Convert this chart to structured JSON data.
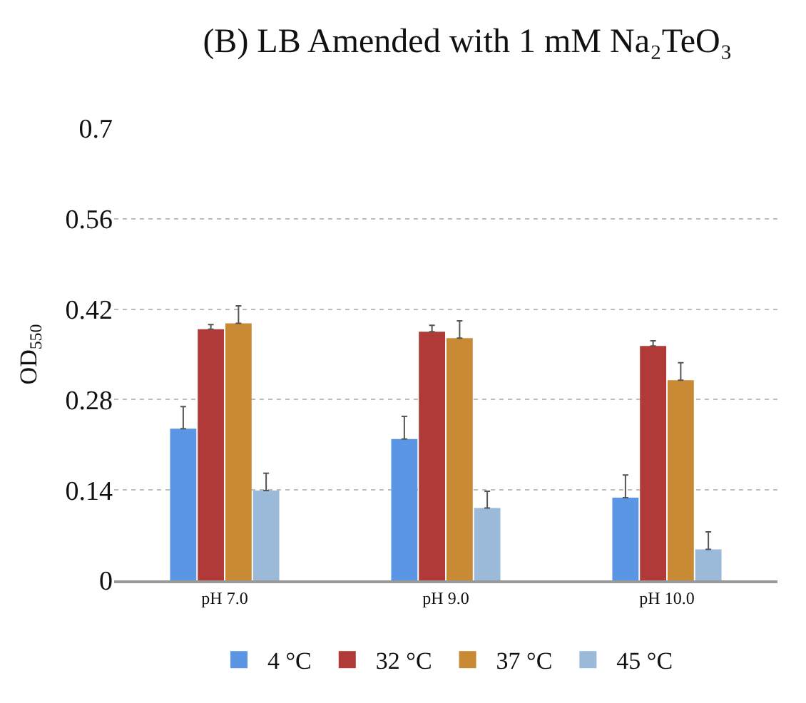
{
  "chart_data": {
    "type": "bar",
    "title": "(B) LB Amended with 1 mM Na₂TeO₃",
    "ylabel": "OD$_{550}$",
    "categories": [
      "pH 7.0",
      "pH 9.0",
      "pH 10.0"
    ],
    "series": [
      {
        "name": "4 °C",
        "color": "#5a96e3",
        "values": [
          0.235,
          0.219,
          0.128
        ],
        "errors": [
          [
            0.235,
            0.269
          ],
          [
            0.219,
            0.254
          ],
          [
            0.128,
            0.163
          ]
        ]
      },
      {
        "name": "32 °C",
        "color": "#b03a37",
        "values": [
          0.389,
          0.385,
          0.363
        ],
        "errors": [
          [
            0.389,
            0.396
          ],
          [
            0.385,
            0.395
          ],
          [
            0.363,
            0.371
          ]
        ]
      },
      {
        "name": "37 °C",
        "color": "#c88a35",
        "values": [
          0.398,
          0.375,
          0.31
        ],
        "errors": [
          [
            0.398,
            0.425
          ],
          [
            0.375,
            0.402
          ],
          [
            0.31,
            0.337
          ]
        ]
      },
      {
        "name": "45 °C",
        "color": "#9bb9d9",
        "values": [
          0.139,
          0.112,
          0.048
        ],
        "errors": [
          [
            0.139,
            0.166
          ],
          [
            0.112,
            0.138
          ],
          [
            0.048,
            0.075
          ]
        ]
      }
    ],
    "ylim": [
      0,
      0.7
    ],
    "yticks": [
      0,
      0.14,
      0.28,
      0.42,
      0.56,
      0.7
    ],
    "grid": "y",
    "legend": "bottom"
  }
}
